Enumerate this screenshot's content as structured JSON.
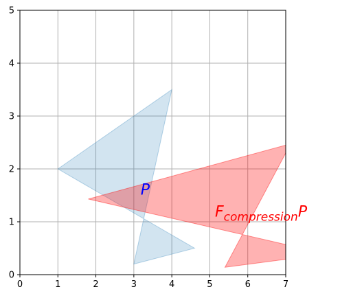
{
  "chart_data": {
    "type": "area",
    "title": "",
    "xlabel": "",
    "ylabel": "",
    "xlim": [
      0,
      7
    ],
    "ylim": [
      0,
      5
    ],
    "xticks": [
      "0",
      "1",
      "2",
      "3",
      "4",
      "5",
      "6",
      "7"
    ],
    "yticks": [
      "0",
      "1",
      "2",
      "3",
      "4",
      "5"
    ],
    "grid": true,
    "series": [
      {
        "polygon": [
          [
            1.0,
            2.0
          ],
          [
            4.0,
            3.5
          ],
          [
            3.0,
            0.2
          ],
          [
            4.6,
            0.5
          ]
        ],
        "color": "#1f77b4",
        "opacity": 0.2
      },
      {
        "polygon": [
          [
            1.8,
            1.43
          ],
          [
            7.0,
            2.45
          ],
          [
            7.0,
            2.3
          ],
          [
            5.4,
            0.14
          ],
          [
            7.0,
            0.29
          ],
          [
            7.0,
            0.57
          ]
        ],
        "color": "#ff0000",
        "opacity": 0.3
      }
    ],
    "annotations": [
      {
        "text": "P",
        "x": 3.3,
        "y": 1.62,
        "color": "#0000ff"
      },
      {
        "base": "F",
        "sub": "compression",
        "tail": "P",
        "x": 6.35,
        "y": 1.2,
        "color": "#ff0000"
      }
    ]
  }
}
